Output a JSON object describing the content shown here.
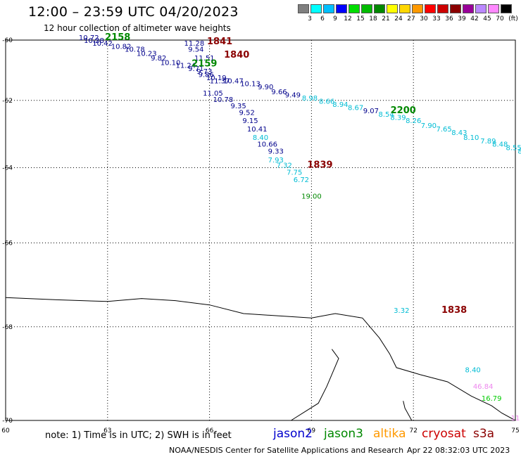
{
  "header": {
    "title": "12:00 – 23:59 UTC 04/20/2023",
    "subtitle": "12 hour collection of altimeter wave heights"
  },
  "colorbar": {
    "unit": "(ft)",
    "items": [
      {
        "label": "3",
        "color": "#7f7f7f"
      },
      {
        "label": "6",
        "color": "#00ffff"
      },
      {
        "label": "9",
        "color": "#00bfff"
      },
      {
        "label": "12",
        "color": "#0000ff"
      },
      {
        "label": "15",
        "color": "#00dd00"
      },
      {
        "label": "18",
        "color": "#00bb00"
      },
      {
        "label": "21",
        "color": "#008800"
      },
      {
        "label": "24",
        "color": "#ffff00"
      },
      {
        "label": "27",
        "color": "#ffd700"
      },
      {
        "label": "30",
        "color": "#ff9900"
      },
      {
        "label": "33",
        "color": "#ff0000"
      },
      {
        "label": "36",
        "color": "#cc0000"
      },
      {
        "label": "39",
        "color": "#8b0000"
      },
      {
        "label": "42",
        "color": "#990099"
      },
      {
        "label": "45",
        "color": "#bb88ff"
      },
      {
        "label": "70",
        "color": "#ff88ff"
      },
      {
        "label": "",
        "color": "#000000"
      }
    ]
  },
  "chart_data": {
    "type": "scatter",
    "title": "12:00 – 23:59 UTC 04/20/2023",
    "subtitle": "12 hour collection of altimeter wave heights",
    "x_ticks": [
      60,
      63,
      66,
      69,
      72,
      75
    ],
    "y_ticks": [
      -60,
      -62,
      -64,
      -66,
      -68,
      -70
    ],
    "xlim": [
      60,
      75
    ],
    "ylim": [
      -70,
      -60
    ],
    "grid": true,
    "colors": {
      "navy": "#00008b",
      "blue": "#0000cd",
      "cyan": "#00bcd4",
      "green": "#008800",
      "lime": "#00cc00",
      "darkred": "#8b0000",
      "pink": "#ee88ee",
      "coast": "#000000"
    },
    "points": [
      {
        "x": 62.45,
        "y": -60.0,
        "label": "10.72",
        "color": "navy"
      },
      {
        "x": 62.6,
        "y": -60.1,
        "label": "10.28",
        "color": "navy"
      },
      {
        "x": 62.85,
        "y": -60.2,
        "label": "10.42",
        "color": "navy"
      },
      {
        "x": 63.4,
        "y": -60.3,
        "label": "10.82",
        "color": "navy"
      },
      {
        "x": 63.8,
        "y": -60.4,
        "label": "10.78",
        "color": "navy"
      },
      {
        "x": 64.15,
        "y": -60.55,
        "label": "10.23",
        "color": "navy"
      },
      {
        "x": 64.5,
        "y": -60.7,
        "label": "9.82",
        "color": "navy"
      },
      {
        "x": 64.85,
        "y": -60.85,
        "label": "10.10",
        "color": "navy"
      },
      {
        "x": 65.3,
        "y": -60.95,
        "label": "11.24",
        "color": "navy"
      },
      {
        "x": 65.6,
        "y": -61.05,
        "label": "9.71",
        "color": "navy"
      },
      {
        "x": 65.85,
        "y": -61.15,
        "label": "9.73",
        "color": "navy"
      },
      {
        "x": 65.9,
        "y": -61.25,
        "label": "9.86",
        "color": "navy"
      },
      {
        "x": 66.2,
        "y": -61.35,
        "label": "10.19",
        "color": "navy"
      },
      {
        "x": 66.3,
        "y": -61.45,
        "label": "11.37",
        "color": "navy"
      },
      {
        "x": 66.7,
        "y": -61.45,
        "label": "10.47",
        "color": "navy"
      },
      {
        "x": 67.2,
        "y": -61.55,
        "label": "10.13",
        "color": "navy"
      },
      {
        "x": 67.65,
        "y": -61.65,
        "label": "9.90",
        "color": "navy"
      },
      {
        "x": 68.05,
        "y": -61.8,
        "label": "9.66",
        "color": "navy"
      },
      {
        "x": 68.45,
        "y": -61.9,
        "label": "9.49",
        "color": "navy"
      },
      {
        "x": 68.95,
        "y": -62.0,
        "label": "8.98",
        "color": "cyan"
      },
      {
        "x": 69.45,
        "y": -62.1,
        "label": "8.66",
        "color": "cyan"
      },
      {
        "x": 69.85,
        "y": -62.2,
        "label": "8.94",
        "color": "cyan"
      },
      {
        "x": 70.3,
        "y": -62.3,
        "label": "8.67",
        "color": "cyan"
      },
      {
        "x": 70.75,
        "y": -62.4,
        "label": "9.07",
        "color": "navy"
      },
      {
        "x": 71.2,
        "y": -62.5,
        "label": "8.54",
        "color": "cyan"
      },
      {
        "x": 71.55,
        "y": -62.6,
        "label": "8.39",
        "color": "cyan"
      },
      {
        "x": 72.0,
        "y": -62.7,
        "label": "8.26",
        "color": "cyan"
      },
      {
        "x": 72.45,
        "y": -62.85,
        "label": "7.90",
        "color": "cyan"
      },
      {
        "x": 72.9,
        "y": -62.95,
        "label": "7.65",
        "color": "cyan"
      },
      {
        "x": 73.35,
        "y": -63.05,
        "label": "8.43",
        "color": "cyan"
      },
      {
        "x": 73.7,
        "y": -63.2,
        "label": "8.10",
        "color": "cyan"
      },
      {
        "x": 74.2,
        "y": -63.3,
        "label": "7.89",
        "color": "cyan"
      },
      {
        "x": 74.55,
        "y": -63.4,
        "label": "8.48",
        "color": "cyan"
      },
      {
        "x": 74.95,
        "y": -63.5,
        "label": "8.55",
        "color": "cyan"
      },
      {
        "x": 75.3,
        "y": -63.6,
        "label": "8.46",
        "color": "cyan"
      },
      {
        "x": 65.55,
        "y": -60.2,
        "label": "11.28",
        "color": "navy"
      },
      {
        "x": 65.6,
        "y": -60.4,
        "label": "9.54",
        "color": "navy"
      },
      {
        "x": 65.85,
        "y": -60.7,
        "label": "11.51",
        "color": "navy"
      },
      {
        "x": 66.1,
        "y": -61.85,
        "label": "11.05",
        "color": "navy"
      },
      {
        "x": 66.4,
        "y": -62.05,
        "label": "10.78",
        "color": "navy"
      },
      {
        "x": 66.85,
        "y": -62.25,
        "label": "9.35",
        "color": "navy"
      },
      {
        "x": 67.1,
        "y": -62.45,
        "label": "9.52",
        "color": "navy"
      },
      {
        "x": 67.2,
        "y": -62.7,
        "label": "9.15",
        "color": "navy"
      },
      {
        "x": 67.4,
        "y": -62.95,
        "label": "10.41",
        "color": "navy"
      },
      {
        "x": 67.5,
        "y": -63.2,
        "label": "8.40",
        "color": "cyan"
      },
      {
        "x": 67.7,
        "y": -63.4,
        "label": "10.66",
        "color": "navy"
      },
      {
        "x": 67.95,
        "y": -63.6,
        "label": "9.33",
        "color": "navy"
      },
      {
        "x": 67.95,
        "y": -63.85,
        "label": "7.93",
        "color": "cyan"
      },
      {
        "x": 68.2,
        "y": -64.0,
        "label": "7.32",
        "color": "cyan"
      },
      {
        "x": 68.5,
        "y": -64.2,
        "label": "7.75",
        "color": "cyan"
      },
      {
        "x": 68.7,
        "y": -64.4,
        "label": "6.72",
        "color": "cyan"
      },
      {
        "x": 69.0,
        "y": -64.85,
        "label": "19.00",
        "color": "green"
      },
      {
        "x": 71.65,
        "y": -67.68,
        "label": "3.32",
        "color": "cyan"
      },
      {
        "x": 73.75,
        "y": -69.0,
        "label": "8.40",
        "color": "cyan"
      },
      {
        "x": 74.05,
        "y": -69.35,
        "label": "46.84",
        "color": "pink"
      },
      {
        "x": 74.3,
        "y": -69.6,
        "label": "16.79",
        "color": "lime"
      },
      {
        "x": 75.0,
        "y": -70.0,
        "label": "11",
        "color": "pink"
      }
    ],
    "times": [
      {
        "x": 63.3,
        "y": -60.0,
        "label": "2158",
        "color": "green"
      },
      {
        "x": 66.3,
        "y": -60.15,
        "label": "1841",
        "color": "darkred"
      },
      {
        "x": 66.8,
        "y": -60.6,
        "label": "1840",
        "color": "darkred"
      },
      {
        "x": 65.85,
        "y": -60.9,
        "label": "2159",
        "color": "green"
      },
      {
        "x": 71.7,
        "y": -62.4,
        "label": "2200",
        "color": "green"
      },
      {
        "x": 69.25,
        "y": -64.0,
        "label": "1839",
        "color": "darkred"
      },
      {
        "x": 73.2,
        "y": -67.68,
        "label": "1838",
        "color": "darkred"
      }
    ],
    "coastlines": [
      [
        [
          60.0,
          -67.33
        ],
        [
          61.5,
          -67.38
        ],
        [
          63.0,
          -67.42
        ],
        [
          64.0,
          -67.35
        ],
        [
          65.0,
          -67.4
        ],
        [
          66.0,
          -67.5
        ],
        [
          67.0,
          -67.7
        ],
        [
          68.0,
          -67.75
        ],
        [
          69.0,
          -67.8
        ],
        [
          69.7,
          -67.7
        ],
        [
          70.5,
          -67.8
        ],
        [
          71.0,
          -68.25
        ],
        [
          71.3,
          -68.6
        ],
        [
          71.5,
          -68.9
        ],
        [
          72.2,
          -69.05
        ],
        [
          73.0,
          -69.2
        ],
        [
          73.7,
          -69.5
        ],
        [
          74.3,
          -69.7
        ],
        [
          74.6,
          -69.85
        ],
        [
          75.0,
          -70.0
        ]
      ],
      [
        [
          69.6,
          -68.5
        ],
        [
          69.8,
          -68.7
        ],
        [
          69.45,
          -69.3
        ],
        [
          69.2,
          -69.65
        ],
        [
          68.4,
          -70.0
        ]
      ],
      [
        [
          71.7,
          -69.6
        ],
        [
          71.75,
          -69.75
        ],
        [
          71.95,
          -70.0
        ]
      ]
    ]
  },
  "footer": {
    "note": "note:  1) Time is in UTC;  2) SWH is in feet",
    "satellites": [
      {
        "name": "jason2",
        "color": "#0000cd"
      },
      {
        "name": "jason3",
        "color": "#008800"
      },
      {
        "name": "altika",
        "color": "#ff9900"
      },
      {
        "name": "cryosat",
        "color": "#cc0000"
      },
      {
        "name": "s3a",
        "color": "#8b0000"
      }
    ],
    "credit": "NOAA/NESDIS Center for Satellite Applications and Research",
    "timestamp": "Apr 22 08:32:03 UTC 2023"
  }
}
